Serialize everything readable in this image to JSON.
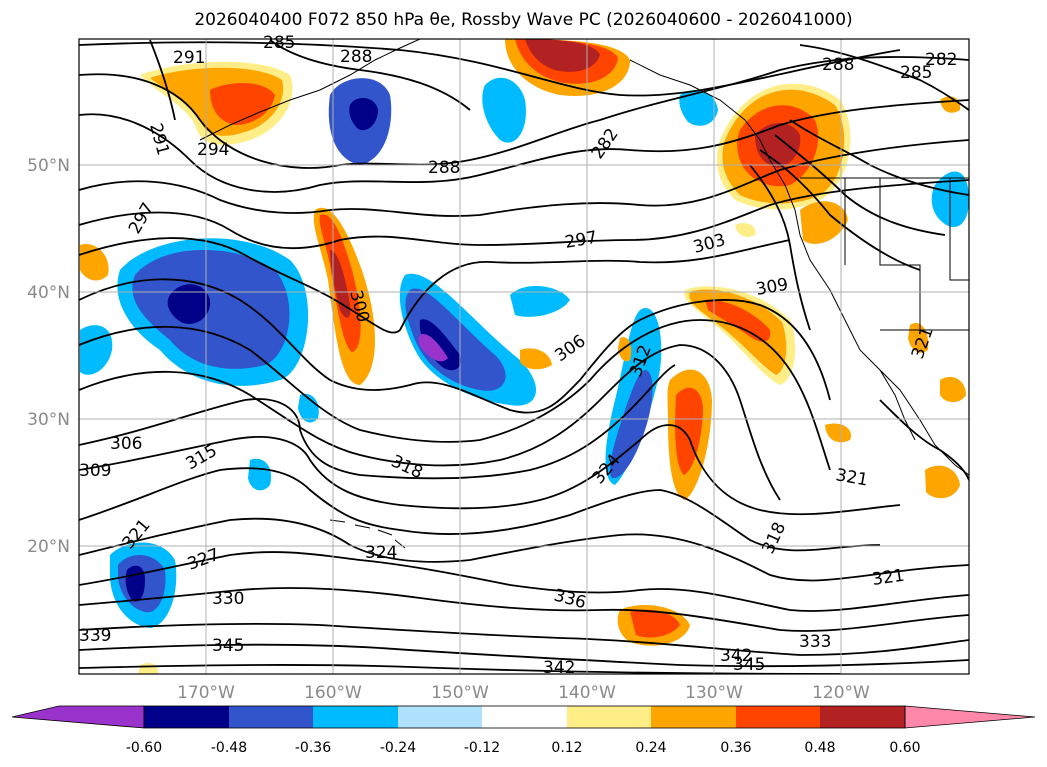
{
  "title": "2026040400 F072 850 hPa θe, Rossby Wave PC (2026040600 - 2026041000)",
  "lat_labels": [
    "50°N",
    "40°N",
    "30°N",
    "20°N"
  ],
  "lon_labels": [
    "170°W",
    "160°W",
    "150°W",
    "140°W",
    "130°W",
    "120°W"
  ],
  "contour_labels": [
    "291",
    "285",
    "288",
    "285",
    "282",
    "288",
    "291",
    "294",
    "288",
    "282",
    "297",
    "297",
    "303",
    "300",
    "309",
    "306",
    "312",
    "321",
    "306",
    "309",
    "315",
    "318",
    "324",
    "321",
    "318",
    "321",
    "321",
    "327",
    "324",
    "330",
    "336",
    "333",
    "339",
    "345",
    "342",
    "345",
    "342"
  ],
  "colorbar": {
    "colors": [
      "#9933cc",
      "#000088",
      "#3355cc",
      "#00bbff",
      "#b0e2ff",
      "#ffffff",
      "#ffee88",
      "#ffa500",
      "#ff4400",
      "#b22222",
      "#ff88aa"
    ],
    "ticks": [
      "-0.60",
      "-0.48",
      "-0.36",
      "-0.24",
      "-0.12",
      "0.12",
      "0.24",
      "0.36",
      "0.48",
      "0.60"
    ]
  },
  "colors": {
    "contour": "#000000",
    "coast": "#000000",
    "grid": "#b0b0b0",
    "tick_text": "#8a8a8a"
  }
}
